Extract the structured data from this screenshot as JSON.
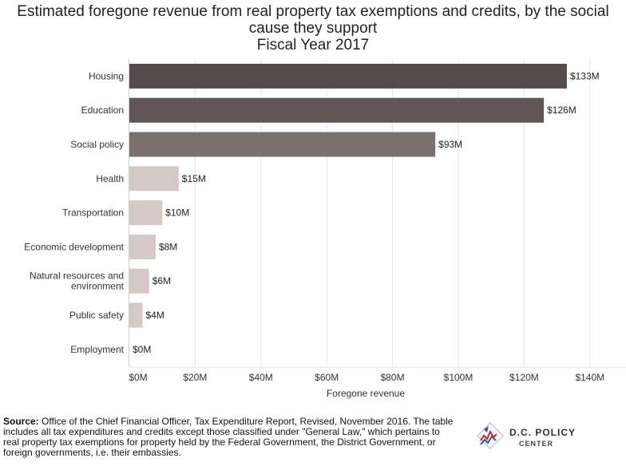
{
  "title_lines": [
    "Estimated foregone revenue from real property tax exemptions and credits, by the social",
    "cause they support",
    "Fiscal Year 2017"
  ],
  "chart_data": {
    "type": "bar",
    "orientation": "horizontal",
    "categories": [
      "Housing",
      "Education",
      "Social policy",
      "Health",
      "Transportation",
      "Economic development",
      "Natural resources and environment",
      "Public safety",
      "Employment"
    ],
    "values": [
      133,
      126,
      93,
      15,
      10,
      8,
      6,
      4,
      0
    ],
    "value_labels": [
      "$133M",
      "$126M",
      "$93M",
      "$15M",
      "$10M",
      "$8M",
      "$6M",
      "$4M",
      "$0M"
    ],
    "bar_colors": [
      "#544b4b",
      "#5f5655",
      "#7a716d",
      "#d4c9c6",
      "#d4c9c6",
      "#d4c9c6",
      "#d4c9c6",
      "#d4c9c6",
      "#d4c9c6"
    ],
    "xlabel": "Foregone revenue",
    "ylabel": "",
    "xlim": [
      0,
      145
    ],
    "x_ticks": [
      0,
      20,
      40,
      60,
      80,
      100,
      120,
      140
    ],
    "x_tick_labels": [
      "$0M",
      "$20M",
      "$40M",
      "$60M",
      "$80M",
      "$100M",
      "$120M",
      "$140M"
    ],
    "grid": true,
    "legend": "none"
  },
  "source": {
    "label": "Source:",
    "text": "Office of the Chief Financial Officer, Tax  Expenditure Report, Revised, November 2016. The table includes all tax expenditures and credits except those classified under \"General Law,\" which pertains to real property tax exemptions for property held by the Federal Government, the District Government, or foreign governments, i.e. their embassies."
  },
  "logo": {
    "line1": "D.C. POLICY",
    "line2": "CENTER",
    "colors": {
      "red": "#d0202e",
      "blue": "#2f5a8a"
    }
  }
}
